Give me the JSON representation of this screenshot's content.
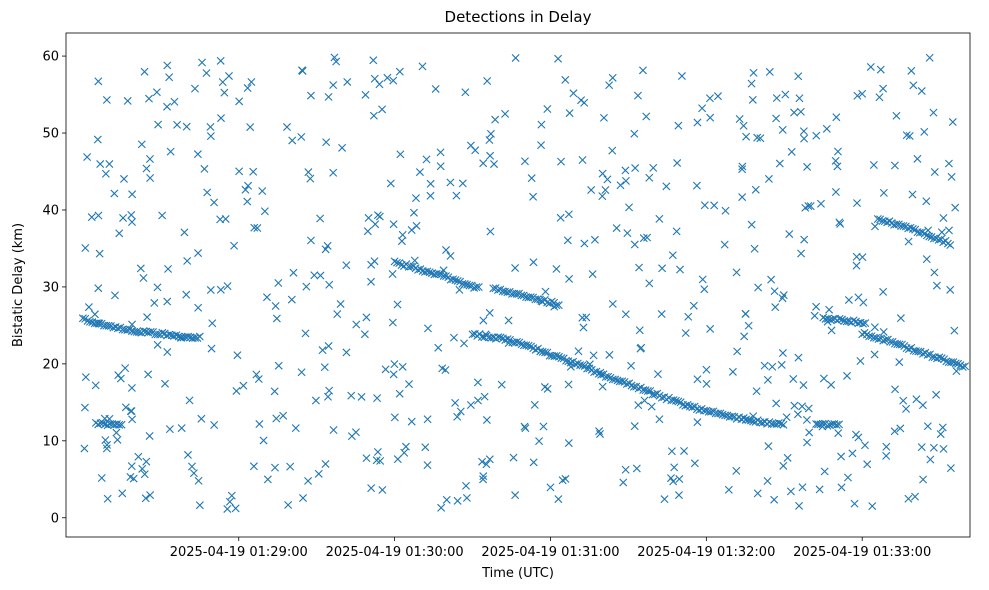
{
  "chart_data": {
    "type": "scatter",
    "title": "Detections in Delay",
    "xlabel": "Time (UTC)",
    "ylabel": "Bistatic Delay (km)",
    "marker": "x",
    "color": "#1f77b4",
    "xlim_seconds": [
      -66.5,
      281.5
    ],
    "ylim": [
      -2.5,
      63
    ],
    "x_ticks": [
      {
        "seconds": 0,
        "label": "2025-04-19 01:29:00"
      },
      {
        "seconds": 60,
        "label": "2025-04-19 01:30:00"
      },
      {
        "seconds": 120,
        "label": "2025-04-19 01:31:00"
      },
      {
        "seconds": 180,
        "label": "2025-04-19 01:32:00"
      },
      {
        "seconds": 240,
        "label": "2025-04-19 01:33:00"
      }
    ],
    "y_ticks": [
      0,
      10,
      20,
      30,
      40,
      50,
      60
    ],
    "tracks": [
      {
        "name": "track-1",
        "points": [
          [
            -60,
            25.8
          ],
          [
            -50,
            24.9
          ],
          [
            -40,
            24.3
          ],
          [
            -30,
            23.9
          ],
          [
            -20,
            23.5
          ],
          [
            -15,
            23.4
          ]
        ]
      },
      {
        "name": "track-2",
        "points": [
          [
            -55,
            12.2
          ],
          [
            -50,
            12.1
          ],
          [
            -45,
            12.0
          ]
        ]
      },
      {
        "name": "track-3",
        "points": [
          [
            60,
            33.2
          ],
          [
            70,
            32.3
          ],
          [
            80,
            31.3
          ],
          [
            90,
            30.1
          ],
          [
            93,
            29.8
          ]
        ]
      },
      {
        "name": "track-4",
        "points": [
          [
            98,
            29.8
          ],
          [
            110,
            28.8
          ],
          [
            120,
            28.0
          ],
          [
            124,
            27.5
          ]
        ]
      },
      {
        "name": "track-5",
        "points": [
          [
            90,
            23.8
          ],
          [
            100,
            23.4
          ],
          [
            110,
            22.5
          ],
          [
            120,
            21.2
          ],
          [
            130,
            20.0
          ],
          [
            140,
            18.6
          ],
          [
            150,
            17.4
          ],
          [
            160,
            16.1
          ],
          [
            170,
            14.9
          ],
          [
            180,
            13.9
          ],
          [
            190,
            13.1
          ],
          [
            200,
            12.5
          ],
          [
            210,
            12.1
          ]
        ]
      },
      {
        "name": "track-6",
        "points": [
          [
            225,
            25.9
          ],
          [
            235,
            25.6
          ],
          [
            242,
            25.2
          ]
        ]
      },
      {
        "name": "track-7",
        "points": [
          [
            223,
            12.1
          ],
          [
            228,
            12.1
          ],
          [
            232,
            12.3
          ]
        ]
      },
      {
        "name": "track-8",
        "points": [
          [
            240,
            24.0
          ],
          [
            250,
            23.0
          ],
          [
            260,
            21.8
          ],
          [
            270,
            20.7
          ],
          [
            280,
            19.5
          ]
        ]
      },
      {
        "name": "track-9",
        "points": [
          [
            246,
            38.8
          ],
          [
            255,
            38.0
          ],
          [
            265,
            36.8
          ],
          [
            274,
            35.6
          ]
        ]
      }
    ],
    "noise_seed": 42,
    "noise_count": 640
  }
}
